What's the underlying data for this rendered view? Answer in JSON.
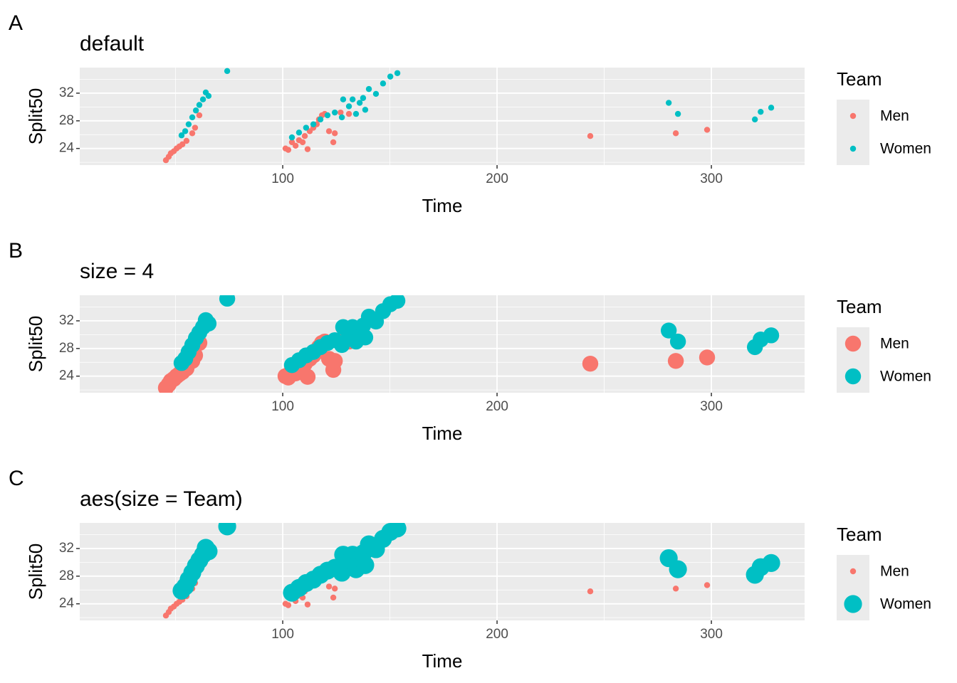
{
  "chart_data": [
    {
      "type": "scatter",
      "tag": "A",
      "title": "default",
      "x_label": "Time",
      "y_label": "Split50",
      "xlim": [
        5.3,
        343.5
      ],
      "ylim": [
        21.6,
        35.7
      ],
      "xticks": [
        100,
        200,
        300
      ],
      "yticks": [
        24,
        28,
        32
      ],
      "xminor": [
        50,
        150,
        250
      ],
      "yminor": [
        22,
        26,
        30,
        34
      ],
      "grid": true,
      "legend_title": "Team",
      "legend_position": "right",
      "series": [
        {
          "name": "Men",
          "color": "#F8766D",
          "point_size": 1.5,
          "x": [
            45.5,
            46.8,
            47.8,
            49.2,
            50.5,
            51.8,
            53.2,
            55.1,
            57.8,
            59.1,
            61.1,
            101.3,
            102.6,
            104.3,
            106,
            107.6,
            109.3,
            110.3,
            111.6,
            112.6,
            114.3,
            115.9,
            116.9,
            118.3,
            119.6,
            121.6,
            123.6,
            124.3,
            127,
            130.9,
            243.5,
            283.4,
            298.0
          ],
          "y": [
            22.3,
            22.8,
            23.3,
            23.6,
            24.0,
            24.3,
            24.6,
            25.1,
            26.2,
            27.0,
            28.8,
            24.0,
            23.8,
            24.9,
            24.4,
            25.2,
            24.9,
            25.8,
            23.9,
            26.5,
            27.0,
            27.5,
            28.2,
            28.8,
            29.0,
            26.5,
            24.9,
            26.2,
            29.2,
            29.0,
            25.8,
            26.2,
            26.7
          ]
        },
        {
          "name": "Women",
          "color": "#00BFC4",
          "point_size": 1.5,
          "x": [
            52.8,
            54.5,
            56.1,
            57.8,
            59.5,
            61.1,
            62.8,
            64.1,
            65.4,
            74.1,
            104.3,
            107.6,
            110.9,
            114.3,
            117.6,
            120.9,
            124.3,
            127.6,
            128.2,
            130.9,
            132.6,
            134.2,
            135.9,
            137.5,
            138.5,
            140.2,
            143.5,
            146.8,
            150.2,
            153.5,
            280.1,
            284.4,
            320.3,
            323.0,
            327.9
          ],
          "y": [
            25.9,
            26.5,
            27.5,
            28.5,
            29.5,
            30.3,
            31.1,
            32.1,
            31.6,
            35.2,
            25.6,
            26.3,
            27.0,
            27.5,
            28.2,
            28.8,
            29.2,
            28.5,
            31.1,
            30.1,
            31.1,
            29.0,
            30.6,
            31.3,
            29.6,
            32.6,
            31.9,
            33.4,
            34.4,
            34.9,
            30.6,
            29.0,
            28.2,
            29.3,
            29.9
          ]
        }
      ]
    },
    {
      "type": "scatter",
      "tag": "B",
      "title": "size = 4",
      "x_label": "Time",
      "y_label": "Split50",
      "xlim": [
        5.3,
        343.5
      ],
      "ylim": [
        21.6,
        35.7
      ],
      "xticks": [
        100,
        200,
        300
      ],
      "yticks": [
        24,
        28,
        32
      ],
      "xminor": [
        50,
        150,
        250
      ],
      "yminor": [
        22,
        26,
        30,
        34
      ],
      "grid": true,
      "legend_title": "Team",
      "legend_position": "right",
      "series": [
        {
          "name": "Men",
          "color": "#F8766D",
          "point_size": 4,
          "x": [
            45.5,
            46.8,
            47.8,
            49.2,
            50.5,
            51.8,
            53.2,
            55.1,
            57.8,
            59.1,
            61.1,
            101.3,
            102.6,
            104.3,
            106,
            107.6,
            109.3,
            110.3,
            111.6,
            112.6,
            114.3,
            115.9,
            116.9,
            118.3,
            119.6,
            121.6,
            123.6,
            124.3,
            127,
            130.9,
            243.5,
            283.4,
            298.0
          ],
          "y": [
            22.3,
            22.8,
            23.3,
            23.6,
            24.0,
            24.3,
            24.6,
            25.1,
            26.2,
            27.0,
            28.8,
            24.0,
            23.8,
            24.9,
            24.4,
            25.2,
            24.9,
            25.8,
            23.9,
            26.5,
            27.0,
            27.5,
            28.2,
            28.8,
            29.0,
            26.5,
            24.9,
            26.2,
            29.2,
            29.0,
            25.8,
            26.2,
            26.7
          ]
        },
        {
          "name": "Women",
          "color": "#00BFC4",
          "point_size": 4,
          "x": [
            52.8,
            54.5,
            56.1,
            57.8,
            59.5,
            61.1,
            62.8,
            64.1,
            65.4,
            74.1,
            104.3,
            107.6,
            110.9,
            114.3,
            117.6,
            120.9,
            124.3,
            127.6,
            128.2,
            130.9,
            132.6,
            134.2,
            135.9,
            137.5,
            138.5,
            140.2,
            143.5,
            146.8,
            150.2,
            153.5,
            280.1,
            284.4,
            320.3,
            323.0,
            327.9
          ],
          "y": [
            25.9,
            26.5,
            27.5,
            28.5,
            29.5,
            30.3,
            31.1,
            32.1,
            31.6,
            35.2,
            25.6,
            26.3,
            27.0,
            27.5,
            28.2,
            28.8,
            29.2,
            28.5,
            31.1,
            30.1,
            31.1,
            29.0,
            30.6,
            31.3,
            29.6,
            32.6,
            31.9,
            33.4,
            34.4,
            34.9,
            30.6,
            29.0,
            28.2,
            29.3,
            29.9
          ]
        }
      ]
    },
    {
      "type": "scatter",
      "tag": "C",
      "title": "aes(size = Team)",
      "x_label": "Time",
      "y_label": "Split50",
      "xlim": [
        5.3,
        343.5
      ],
      "ylim": [
        21.6,
        35.7
      ],
      "xticks": [
        100,
        200,
        300
      ],
      "yticks": [
        24,
        28,
        32
      ],
      "xminor": [
        50,
        150,
        250
      ],
      "yminor": [
        22,
        26,
        30,
        34
      ],
      "grid": true,
      "legend_title": "Team",
      "legend_position": "right",
      "series": [
        {
          "name": "Men",
          "color": "#F8766D",
          "point_size": 1.5,
          "x": [
            45.5,
            46.8,
            47.8,
            49.2,
            50.5,
            51.8,
            53.2,
            55.1,
            57.8,
            59.1,
            61.1,
            101.3,
            102.6,
            104.3,
            106,
            107.6,
            109.3,
            110.3,
            111.6,
            112.6,
            114.3,
            115.9,
            116.9,
            118.3,
            119.6,
            121.6,
            123.6,
            124.3,
            127,
            130.9,
            243.5,
            283.4,
            298.0
          ],
          "y": [
            22.3,
            22.8,
            23.3,
            23.6,
            24.0,
            24.3,
            24.6,
            25.1,
            26.2,
            27.0,
            28.8,
            24.0,
            23.8,
            24.9,
            24.4,
            25.2,
            24.9,
            25.8,
            23.9,
            26.5,
            27.0,
            27.5,
            28.2,
            28.8,
            29.0,
            26.5,
            24.9,
            26.2,
            29.2,
            29.0,
            25.8,
            26.2,
            26.7
          ]
        },
        {
          "name": "Women",
          "color": "#00BFC4",
          "point_size": 4.5,
          "x": [
            52.8,
            54.5,
            56.1,
            57.8,
            59.5,
            61.1,
            62.8,
            64.1,
            65.4,
            74.1,
            104.3,
            107.6,
            110.9,
            114.3,
            117.6,
            120.9,
            124.3,
            127.6,
            128.2,
            130.9,
            132.6,
            134.2,
            135.9,
            137.5,
            138.5,
            140.2,
            143.5,
            146.8,
            150.2,
            153.5,
            280.1,
            284.4,
            320.3,
            323.0,
            327.9
          ],
          "y": [
            25.9,
            26.5,
            27.5,
            28.5,
            29.5,
            30.3,
            31.1,
            32.1,
            31.6,
            35.2,
            25.6,
            26.3,
            27.0,
            27.5,
            28.2,
            28.8,
            29.2,
            28.5,
            31.1,
            30.1,
            31.1,
            29.0,
            30.6,
            31.3,
            29.6,
            32.6,
            31.9,
            33.4,
            34.4,
            34.9,
            30.6,
            29.0,
            28.2,
            29.3,
            29.9
          ]
        }
      ]
    }
  ]
}
